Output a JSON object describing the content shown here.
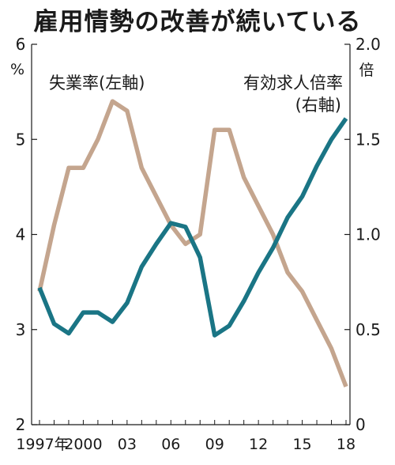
{
  "chart_data": {
    "type": "line",
    "title": "雇用情勢の改善が続いている",
    "left_axis": {
      "unit": "%",
      "ticks": [
        2,
        3,
        4,
        5,
        6
      ],
      "tick_labels": [
        "2",
        "3",
        "4",
        "5",
        "6"
      ],
      "ylim": [
        2,
        6
      ]
    },
    "right_axis": {
      "unit": "倍",
      "ticks": [
        0,
        0.5,
        1.0,
        1.5,
        2.0
      ],
      "tick_labels": [
        "0",
        "0.5",
        "1.0",
        "1.5",
        "2.0"
      ],
      "ylim": [
        0,
        2.0
      ]
    },
    "x_axis": {
      "range": [
        1997,
        2018
      ],
      "ticks": [
        1997,
        2000,
        2003,
        2006,
        2009,
        2012,
        2015,
        2018
      ],
      "tick_labels": [
        "1997年",
        "2000",
        "03",
        "06",
        "09",
        "12",
        "15",
        "18"
      ]
    },
    "grid": false,
    "series": [
      {
        "name": "失業率(左軸)",
        "axis": "left",
        "color": "#c4a58e",
        "x": [
          1997,
          1998,
          1999,
          2000,
          2001,
          2002,
          2003,
          2004,
          2005,
          2006,
          2007,
          2008,
          2009,
          2010,
          2011,
          2012,
          2013,
          2014,
          2015,
          2016,
          2017,
          2018
        ],
        "values": [
          3.4,
          4.1,
          4.7,
          4.7,
          5.0,
          5.4,
          5.3,
          4.7,
          4.4,
          4.1,
          3.9,
          4.0,
          5.1,
          5.1,
          4.6,
          4.3,
          4.0,
          3.6,
          3.4,
          3.1,
          2.8,
          2.4
        ]
      },
      {
        "name": "有効求人倍率(右軸)",
        "axis": "right",
        "color": "#1a7585",
        "x": [
          1997,
          1998,
          1999,
          2000,
          2001,
          2002,
          2003,
          2004,
          2005,
          2006,
          2007,
          2008,
          2009,
          2010,
          2011,
          2012,
          2013,
          2014,
          2015,
          2016,
          2017,
          2018
        ],
        "values": [
          0.72,
          0.53,
          0.48,
          0.59,
          0.59,
          0.54,
          0.64,
          0.83,
          0.95,
          1.06,
          1.04,
          0.88,
          0.47,
          0.52,
          0.65,
          0.8,
          0.93,
          1.09,
          1.2,
          1.36,
          1.5,
          1.61
        ]
      }
    ]
  }
}
